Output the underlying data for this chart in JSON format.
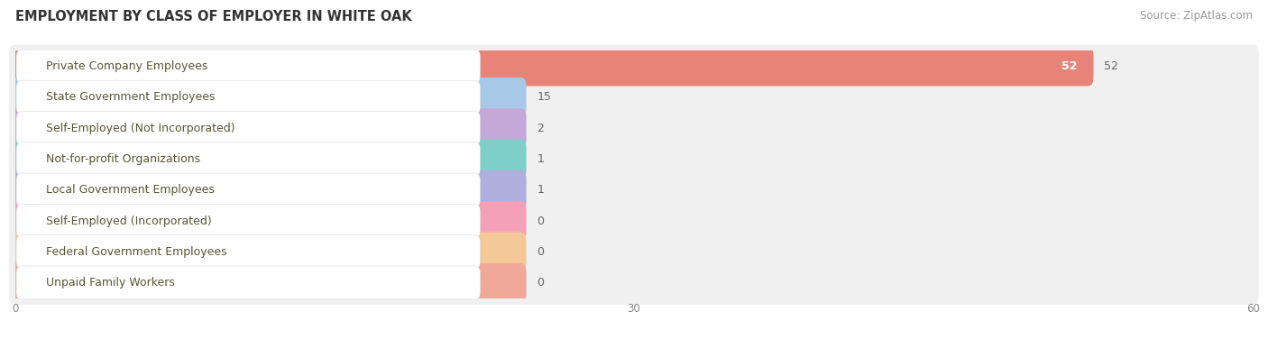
{
  "title": "EMPLOYMENT BY CLASS OF EMPLOYER IN WHITE OAK",
  "source": "Source: ZipAtlas.com",
  "categories": [
    "Private Company Employees",
    "State Government Employees",
    "Self-Employed (Not Incorporated)",
    "Not-for-profit Organizations",
    "Local Government Employees",
    "Self-Employed (Incorporated)",
    "Federal Government Employees",
    "Unpaid Family Workers"
  ],
  "values": [
    52,
    15,
    2,
    1,
    1,
    0,
    0,
    0
  ],
  "bar_colors": [
    "#e8837a",
    "#a8c8e8",
    "#c4a8d8",
    "#7ecfc8",
    "#b0aedc",
    "#f4a0b8",
    "#f5c898",
    "#f0a898"
  ],
  "row_bg_color": "#f0f0f0",
  "xlim_max": 60,
  "xticks": [
    0,
    30,
    60
  ],
  "title_fontsize": 10.5,
  "source_fontsize": 8.5,
  "label_fontsize": 9,
  "value_fontsize": 9,
  "background_color": "#ffffff",
  "label_box_color": "#ffffff",
  "label_text_color": "#555533",
  "value_text_color": "#666666",
  "grid_color": "#d8d8d8"
}
